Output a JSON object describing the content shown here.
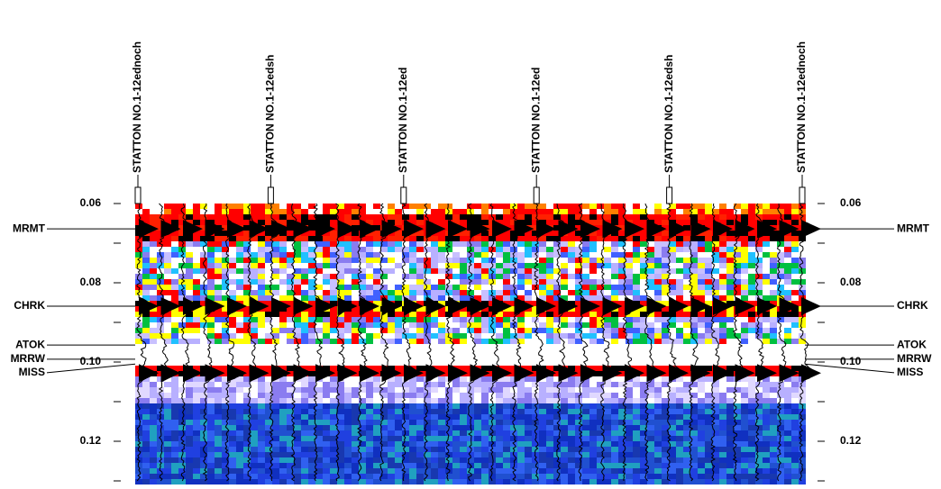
{
  "chart_data": {
    "type": "seismic-section",
    "wells": [
      "STATTON NO.1-12ednoch",
      "STATTON NO.1-12edsh",
      "STATTON NO.1-12ed",
      "STATTON NO.1-12ed",
      "STATTON NO.1-12edsh",
      "STATTON NO.1-12ednoch"
    ],
    "ylim": [
      0.06,
      0.13
    ],
    "yticks": [
      0.06,
      0.08,
      {
        "value": 0.1,
        "label": "0.10"
      },
      0.12
    ],
    "yminorticks": [
      0.07,
      0.09,
      0.11,
      0.13
    ],
    "horizons": [
      {
        "name": "MRMT",
        "time": 0.0664
      },
      {
        "name": "CHRK",
        "time": 0.0859
      },
      {
        "name": "ATOK",
        "time": 0.0957
      },
      {
        "name": "MRRW",
        "time": 0.0993
      },
      {
        "name": "MISS",
        "time": 0.1005
      }
    ]
  }
}
